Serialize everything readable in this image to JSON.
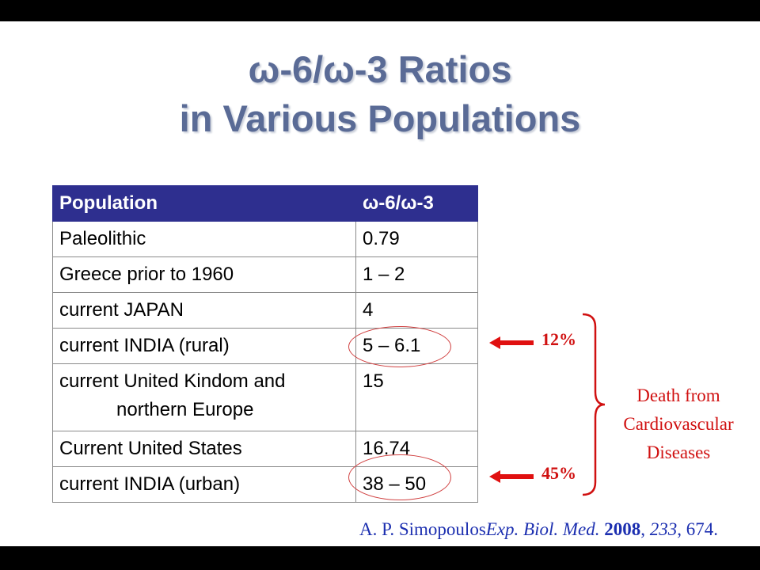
{
  "title": {
    "line1": "ω-6/ω-3 Ratios",
    "line2": "in Various Populations"
  },
  "table": {
    "headers": [
      "Population",
      "ω-6/ω-3"
    ],
    "rows": [
      {
        "population": "Paleolithic",
        "ratio": "0.79"
      },
      {
        "population": "Greece prior to 1960",
        "ratio": "1 – 2"
      },
      {
        "population": "current JAPAN",
        "ratio": "4"
      },
      {
        "population": "current INDIA (rural)",
        "ratio": "5 – 6.1"
      },
      {
        "population_line1": "current United Kindom and",
        "population_line2": "northern Europe",
        "ratio": "15"
      },
      {
        "population": "Current United States",
        "ratio": "16.74"
      },
      {
        "population": "current INDIA (urban)",
        "ratio": "38 – 50"
      }
    ]
  },
  "annotations": {
    "rural_percent": "12%",
    "urban_percent": "45%",
    "death_lines": [
      "Death from",
      "Cardiovascular",
      "Diseases"
    ],
    "color": "#d01010"
  },
  "citation": {
    "author": "A. P. Simopoulos",
    "journal": "Exp. Biol. Med.",
    "year": "2008",
    "volume": "233",
    "page": "674."
  },
  "colors": {
    "title": "#5a6b96",
    "header_bg": "#2e2f8f",
    "citation": "#1c2fb0"
  }
}
